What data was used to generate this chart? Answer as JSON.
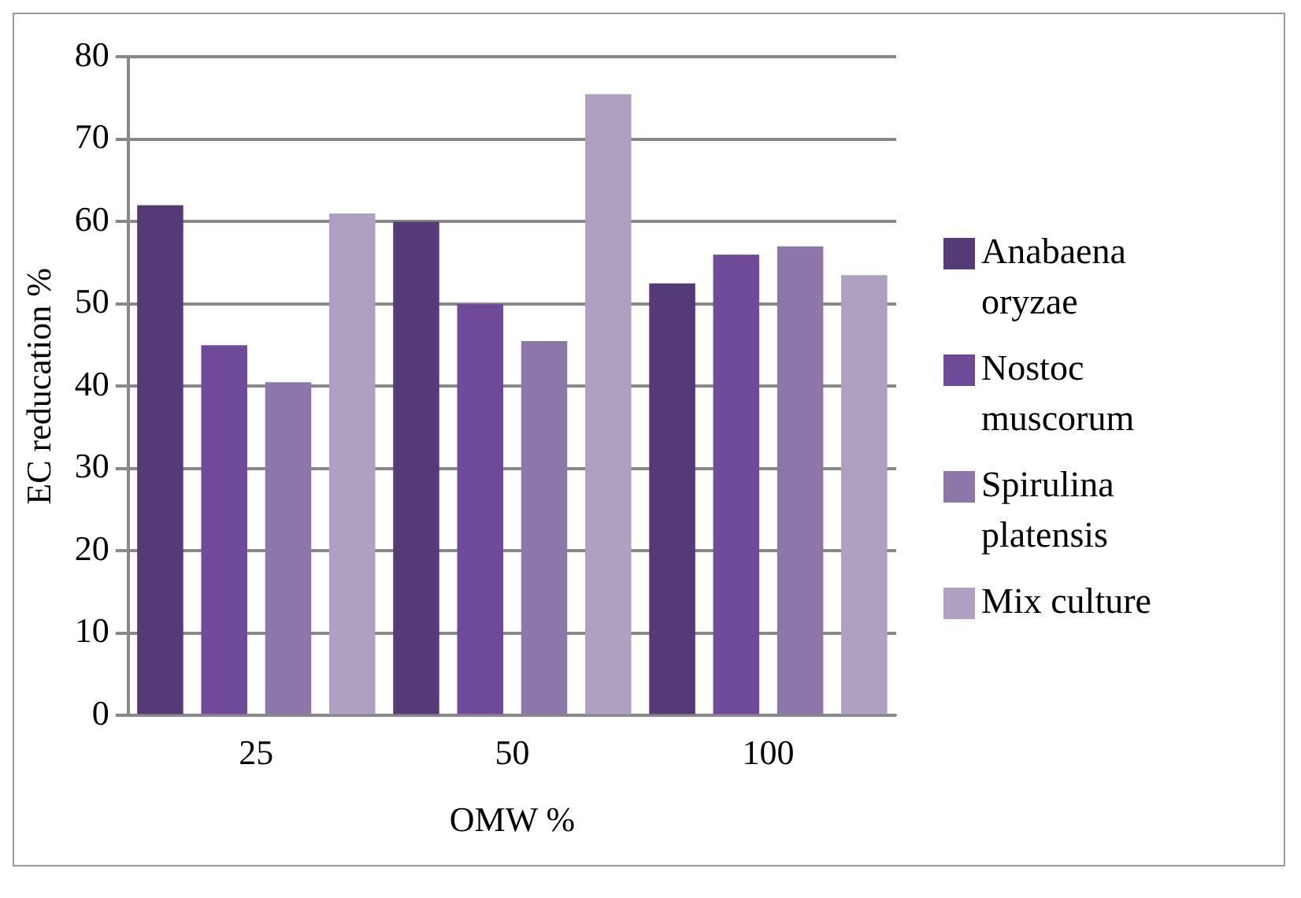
{
  "chart_data": {
    "type": "bar",
    "xlabel": "OMW %",
    "ylabel": "EC reducation %",
    "categories": [
      "25",
      "50",
      "100"
    ],
    "series": [
      {
        "name": "Anabaena oryzae",
        "color": "#553a78",
        "values": [
          62,
          60,
          52.5
        ]
      },
      {
        "name": "Nostoc muscorum",
        "color": "#6e4a98",
        "values": [
          45,
          50,
          56
        ]
      },
      {
        "name": "Spirulina platensis",
        "color": "#8c76aa",
        "values": [
          40.5,
          45.5,
          57
        ]
      },
      {
        "name": "Mix culture",
        "color": "#ada0c0",
        "values": [
          61,
          75.5,
          53.5
        ]
      }
    ],
    "ylim": [
      0,
      80
    ],
    "yticks": [
      0,
      10,
      20,
      30,
      40,
      50,
      60,
      70,
      80
    ],
    "grid": "y",
    "legend": "right"
  }
}
